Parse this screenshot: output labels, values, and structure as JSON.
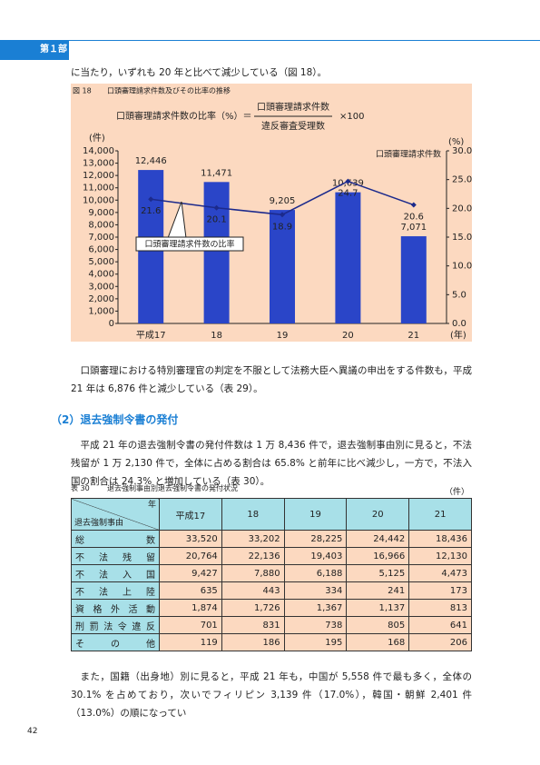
{
  "header": {
    "part": "第１部"
  },
  "intro_line": "に当たり，いずれも 20 年と比べて減少している（図 18）。",
  "figure": {
    "number": "図 18",
    "title": "口頭審理請求件数及びその比率の推移",
    "formula": {
      "left": "口頭審理請求件数の比率（%）＝",
      "numerator": "口頭審理請求件数",
      "denominator": "違反審査受理数",
      "factor": "×100"
    }
  },
  "chart_data": {
    "type": "bar",
    "categories": [
      "平成17",
      "18",
      "19",
      "20",
      "21"
    ],
    "series": [
      {
        "name": "口頭審理請求件数",
        "type": "bar",
        "color": "#2a45c8",
        "values": [
          12446,
          11471,
          9205,
          10639,
          7071
        ],
        "value_labels": [
          "12,446",
          "11,471",
          "9,205",
          "10,639",
          "7,071"
        ]
      },
      {
        "name": "口頭審理請求件数の比率",
        "type": "line",
        "axis": "y2",
        "color": "#1c2a8c",
        "values": [
          21.6,
          20.1,
          18.9,
          24.7,
          20.6
        ]
      }
    ],
    "ylim": [
      0,
      14000
    ],
    "yticks": [
      0,
      {
        "value": 1000,
        "label": "1,000"
      },
      {
        "value": 2000,
        "label": "2,000"
      },
      {
        "value": 3000,
        "label": "3,000"
      },
      {
        "value": 4000,
        "label": "4,000"
      },
      {
        "value": 5000,
        "label": "5,000"
      },
      {
        "value": 6000,
        "label": "6,000"
      },
      {
        "value": 7000,
        "label": "7,000"
      },
      {
        "value": 8000,
        "label": "8,000"
      },
      {
        "value": 9000,
        "label": "9,000"
      },
      {
        "value": 10000,
        "label": "10,000"
      },
      {
        "value": 11000,
        "label": "11,000"
      },
      {
        "value": 12000,
        "label": "12,000"
      },
      {
        "value": 13000,
        "label": "13,000"
      },
      {
        "value": 14000,
        "label": "14,000"
      }
    ],
    "y2lim": [
      0,
      30
    ],
    "y2ticks": [
      {
        "value": 0,
        "label": "0.0"
      },
      {
        "value": 5,
        "label": "5.0"
      },
      {
        "value": 10,
        "label": "10.0"
      },
      {
        "value": 15,
        "label": "15.0"
      },
      {
        "value": 20,
        "label": "20.0"
      },
      {
        "value": 25,
        "label": "25.0"
      },
      {
        "value": 30,
        "label": "30.0"
      }
    ],
    "y_unit": "(件)",
    "y2_unit": "(%)",
    "x_unit": "(年)",
    "background": "#fcd9c0"
  },
  "paragraph1": "口頭審理における特別審理官の判定を不服として法務大臣へ異議の申出をする件数も，平成 21 年は 6,876 件と減少している（表 29）。",
  "section_heading": "（2）退去強制令書の発付",
  "paragraph2": "平成 21 年の退去強制令書の発付件数は 1 万 8,436 件で，退去強制事由別に見ると，不法残留が 1 万 2,130 件で，全体に占める割合は 65.8% と前年に比べ減少し，一方で，不法入国の割合は 24.3% と増加している（表 30）。",
  "table": {
    "number": "表 30",
    "title": "退去強制事由別退去強制令書の発付状況",
    "unit": "（件）",
    "corner_top": "年",
    "corner_bottom": "退去強制事由",
    "columns": [
      "平成17",
      "18",
      "19",
      "20",
      "21"
    ],
    "rows": [
      [
        "総数",
        "33,520",
        "33,202",
        "28,225",
        "24,442",
        "18,436"
      ],
      [
        "不法残留",
        "20,764",
        "22,136",
        "19,403",
        "16,966",
        "12,130"
      ],
      [
        "不法入国",
        "9,427",
        "7,880",
        "6,188",
        "5,125",
        "4,473"
      ],
      [
        "不法上陸",
        "635",
        "443",
        "334",
        "241",
        "173"
      ],
      [
        "資格外活動",
        "1,874",
        "1,726",
        "1,367",
        "1,137",
        "813"
      ],
      [
        "刑罰法令違反",
        "701",
        "831",
        "738",
        "805",
        "641"
      ],
      [
        "その他",
        "119",
        "186",
        "195",
        "168",
        "206"
      ]
    ]
  },
  "paragraph3": "また，国籍（出身地）別に見ると，平成 21 年も，中国が 5,558 件で最も多く，全体の 30.1% を占めており，次いでフィリピン 3,139 件（17.0%），韓国・朝鮮 2,401 件（13.0%）の順になってい",
  "page_number": "42"
}
